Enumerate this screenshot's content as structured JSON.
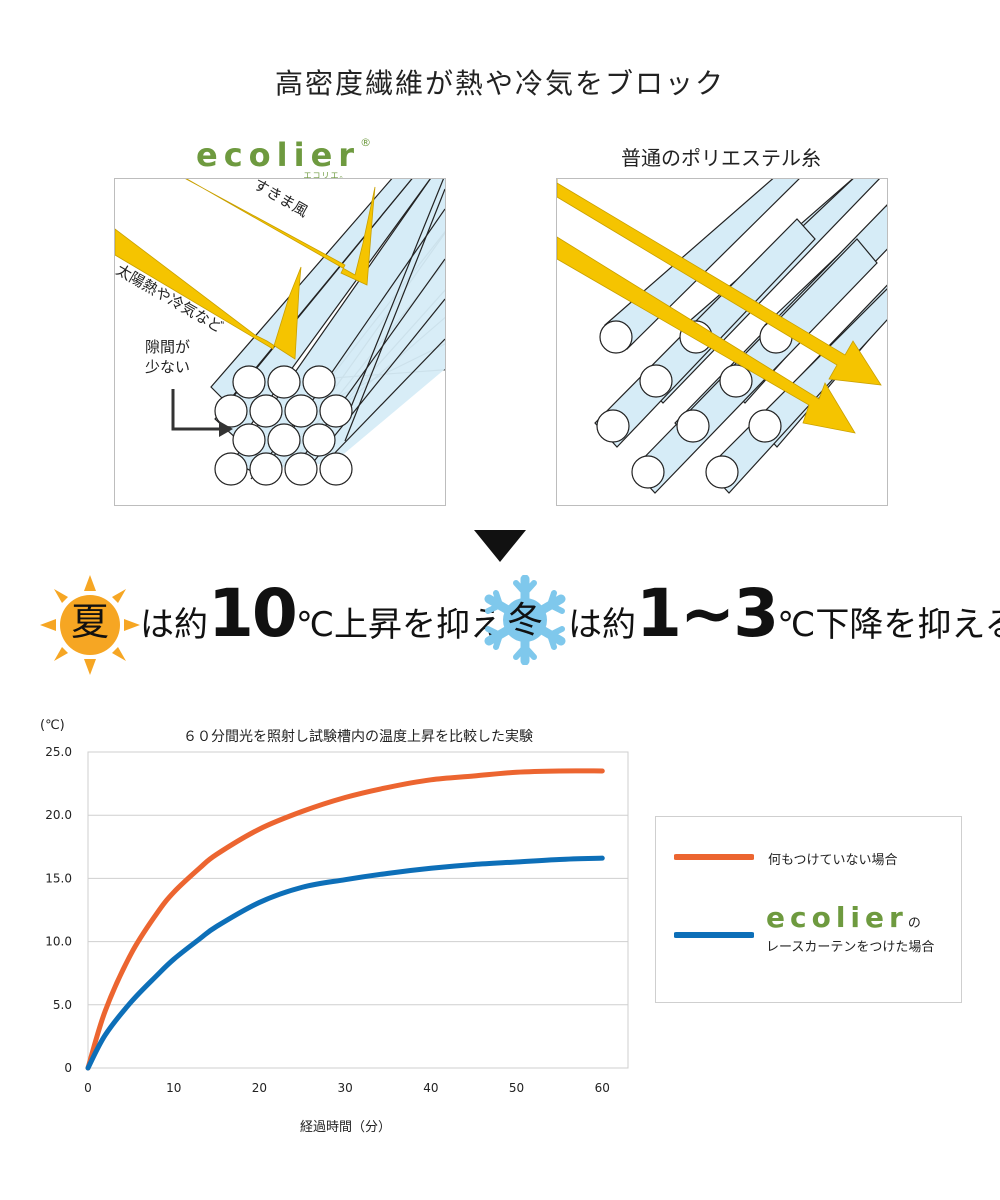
{
  "title": "高密度繊維が熱や冷気をブロック",
  "left_panel": {
    "brand": "ecolier",
    "brand_mark": "®",
    "brand_kana": "エコリエ。",
    "label_wind": "すきま風",
    "label_heat": "太陽熱や冷気など",
    "label_gap": "隙間が\n少ない"
  },
  "right_panel": {
    "title": "普通のポリエステル糸"
  },
  "summary": {
    "summer_badge": "夏",
    "summer_text_pre": "は約",
    "summer_value": "10",
    "summer_unit": "℃",
    "summer_text_post": "上昇を抑え",
    "winter_badge": "冬",
    "winter_text_pre": "は約",
    "winter_value": "1~3",
    "winter_unit": "℃",
    "winter_text_post": "下降を抑える"
  },
  "colors": {
    "arrow_yellow": "#f5c400",
    "fiber_blue": "#d6ecf7",
    "series_none": "#ec6530",
    "series_ecolier": "#0d6fb8",
    "brand_green": "#6e9a3f",
    "sun_orange": "#f6a623",
    "snow_blue": "#7fc8ec"
  },
  "chart_data": {
    "type": "line",
    "title": "６０分間光を照射し試験槽内の温度上昇を比較した実験",
    "xlabel": "経過時間（分）",
    "ylabel": "(℃)",
    "xlim": [
      0,
      63
    ],
    "ylim": [
      0,
      25
    ],
    "xticks": [
      0,
      10,
      20,
      30,
      40,
      50,
      60
    ],
    "yticks": [
      "0",
      "5.0",
      "10.0",
      "15.0",
      "20.0",
      "25.0"
    ],
    "ytick_values": [
      0,
      5,
      10,
      15,
      20,
      25
    ],
    "grid": true,
    "legend_position": "right",
    "series": [
      {
        "name": "何もつけていない場合",
        "color": "#ec6530",
        "x": [
          0,
          2,
          5,
          8,
          10,
          13,
          15,
          20,
          25,
          30,
          35,
          40,
          45,
          50,
          55,
          60
        ],
        "y": [
          0,
          4.5,
          9.0,
          12.2,
          13.9,
          15.8,
          16.9,
          18.9,
          20.3,
          21.4,
          22.2,
          22.8,
          23.1,
          23.4,
          23.5,
          23.5
        ]
      },
      {
        "name": "ecolier のレースカーテンをつけた場合",
        "color": "#0d6fb8",
        "x": [
          0,
          2,
          5,
          8,
          10,
          13,
          15,
          20,
          25,
          30,
          35,
          40,
          45,
          50,
          55,
          60
        ],
        "y": [
          0,
          2.6,
          5.2,
          7.3,
          8.6,
          10.2,
          11.2,
          13.1,
          14.3,
          14.9,
          15.4,
          15.8,
          16.1,
          16.3,
          16.5,
          16.6
        ]
      }
    ]
  },
  "legend": {
    "item1": "何もつけていない場合",
    "item2_brand": "ecolier",
    "item2_suffix": "の",
    "item2_line2": "レースカーテンをつけた場合"
  }
}
